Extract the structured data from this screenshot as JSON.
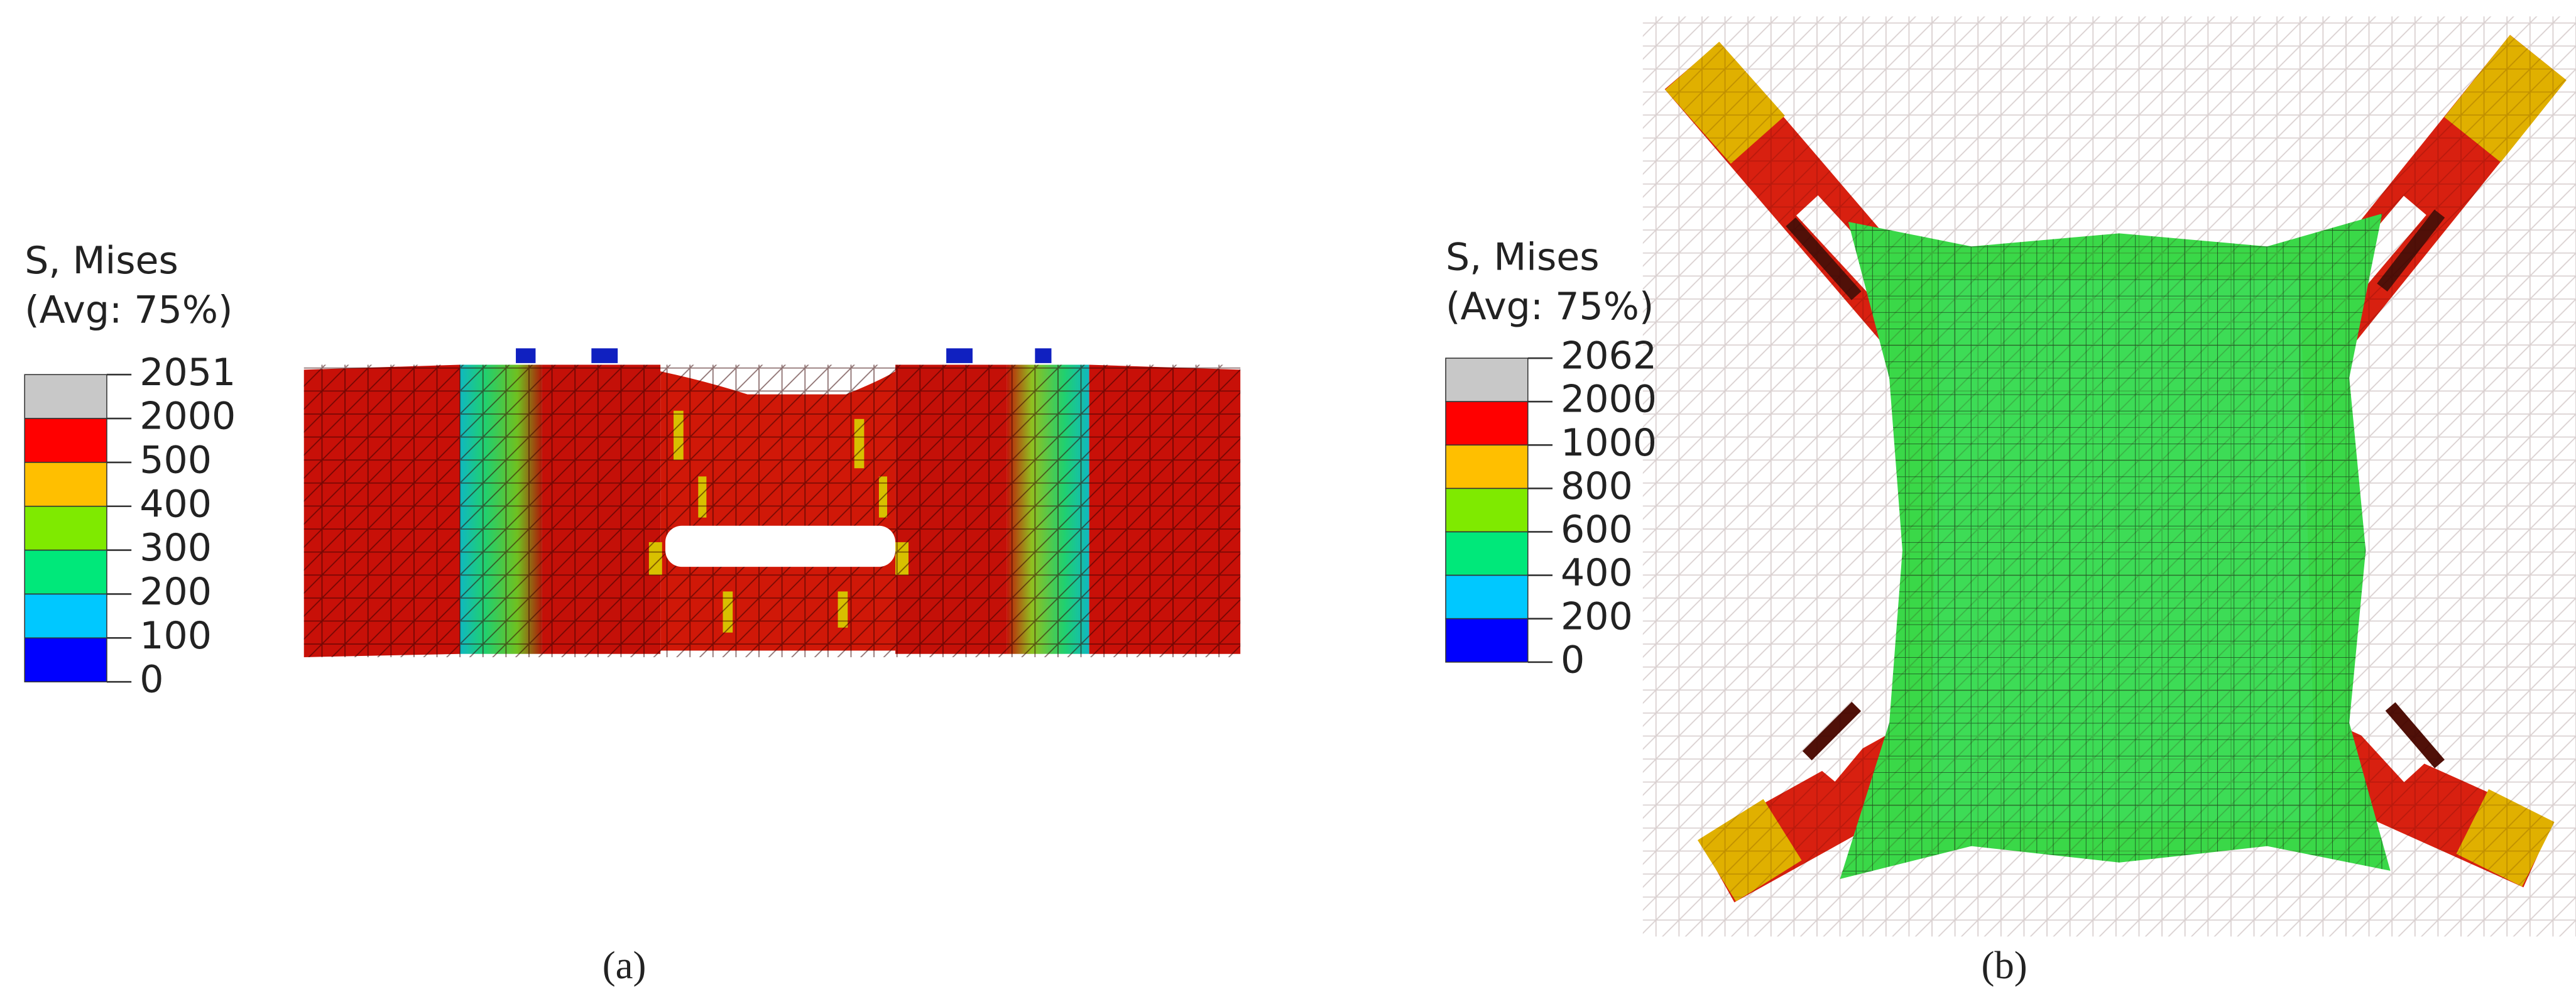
{
  "panels": [
    {
      "legend": {
        "title": "S, Mises",
        "subtitle": "(Avg: 75%)",
        "labels": [
          2051,
          2000,
          500,
          400,
          300,
          200,
          100,
          0
        ],
        "colors": [
          "#c8c8c8",
          "#ff0000",
          "#ffbf00",
          "#7fea00",
          "#00e87a",
          "#00c8ff",
          "#0000ff"
        ]
      },
      "caption": "(a)"
    },
    {
      "legend": {
        "title": "S, Mises",
        "subtitle": "(Avg: 75%)",
        "labels": [
          2062,
          2000,
          1000,
          800,
          600,
          400,
          200,
          0
        ],
        "colors": [
          "#c8c8c8",
          "#ff0000",
          "#ffbf00",
          "#7fea00",
          "#00e87a",
          "#00c8ff",
          "#0000ff"
        ]
      },
      "caption": "(b)"
    }
  ]
}
